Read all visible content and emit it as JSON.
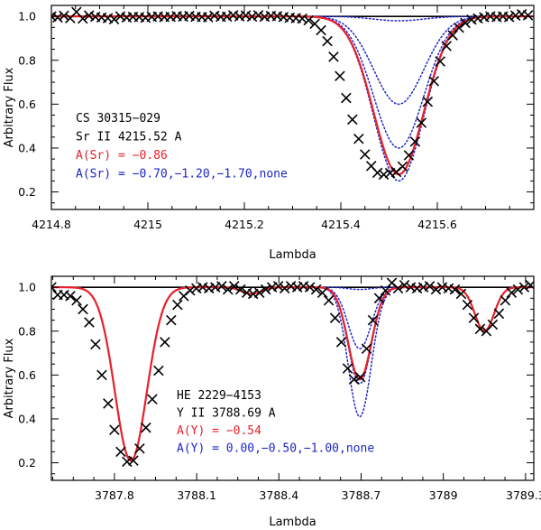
{
  "chart_data": [
    {
      "type": "line",
      "panel": "top",
      "xlabel": "Lambda",
      "ylabel": "Arbitrary Flux",
      "xlim": [
        4214.8,
        4215.8
      ],
      "ylim": [
        0.12,
        1.05
      ],
      "xticks": [
        4214.8,
        4215,
        4215.2,
        4215.4,
        4215.6
      ],
      "xtick_labels": [
        "4214.8",
        "4215",
        "4215.2",
        "4215.4",
        "4215.6"
      ],
      "yticks": [
        0.2,
        0.4,
        0.6,
        0.8,
        1.0
      ],
      "ytick_labels": [
        "0.2",
        "0.4",
        "0.6",
        "0.8",
        "1.0"
      ],
      "annotation": {
        "star": "CS 30315−029",
        "line": "Sr II 4215.52 A",
        "best_fit": "A(Sr) = −0.86",
        "range": "A(Sr) = −0.70,−1.20,−1.70,none"
      },
      "colors": {
        "best_fit": "#e8202a",
        "range": "#1d26c9",
        "observed": "#000000"
      },
      "lines": [
        {
          "center": 4215.52,
          "sigma": 0.052
        }
      ],
      "series": [
        {
          "name": "A(Sr) = −0.86 (best fit)",
          "style": "red-solid",
          "depths": [
            0.72
          ]
        },
        {
          "name": "A(Sr) = −0.70",
          "style": "blue-dotted",
          "depths": [
            0.75
          ]
        },
        {
          "name": "A(Sr) = −1.20",
          "style": "blue-dotted",
          "depths": [
            0.6
          ]
        },
        {
          "name": "A(Sr) = −1.70",
          "style": "blue-dotted",
          "depths": [
            0.4
          ]
        },
        {
          "name": "none",
          "style": "blue-dotted",
          "depths": [
            0.02
          ]
        }
      ],
      "observed": {
        "x": [
          4214.8,
          4214.813,
          4214.826,
          4214.839,
          4214.852,
          4214.865,
          4214.878,
          4214.891,
          4214.904,
          4214.917,
          4214.93,
          4214.943,
          4214.956,
          4214.969,
          4214.982,
          4214.995,
          4215.008,
          4215.021,
          4215.034,
          4215.047,
          4215.06,
          4215.073,
          4215.086,
          4215.099,
          4215.112,
          4215.125,
          4215.138,
          4215.151,
          4215.164,
          4215.177,
          4215.19,
          4215.203,
          4215.216,
          4215.229,
          4215.242,
          4215.255,
          4215.268,
          4215.281,
          4215.294,
          4215.307,
          4215.32,
          4215.333,
          4215.346,
          4215.359,
          4215.372,
          4215.385,
          4215.398,
          4215.411,
          4215.424,
          4215.437,
          4215.45,
          4215.463,
          4215.476,
          4215.489,
          4215.502,
          4215.515,
          4215.528,
          4215.541,
          4215.554,
          4215.567,
          4215.58,
          4215.593,
          4215.606,
          4215.619,
          4215.632,
          4215.645,
          4215.658,
          4215.671,
          4215.684,
          4215.697,
          4215.71,
          4215.723,
          4215.736,
          4215.749,
          4215.762,
          4215.775,
          4215.788
        ],
        "flux": [
          1.0,
          0.995,
          1.003,
          0.992,
          1.02,
          0.99,
          1.004,
          0.998,
          0.995,
          0.992,
          0.987,
          1.0,
          0.995,
          0.998,
          0.997,
          0.994,
          0.998,
          1.0,
          0.997,
          0.998,
          1.001,
          0.999,
          1.002,
          0.998,
          0.997,
          0.996,
          1.003,
          0.998,
          0.999,
          1.005,
          1.0,
          1.004,
          0.999,
          1.005,
          0.998,
          1.002,
          1.001,
          0.997,
          0.994,
          0.992,
          0.99,
          0.982,
          0.966,
          0.937,
          0.887,
          0.816,
          0.728,
          0.628,
          0.53,
          0.442,
          0.371,
          0.318,
          0.287,
          0.279,
          0.286,
          0.291,
          0.316,
          0.367,
          0.429,
          0.515,
          0.611,
          0.705,
          0.795,
          0.865,
          0.914,
          0.948,
          0.97,
          0.985,
          0.991,
          0.996,
          1.0,
          0.997,
          1.0,
          0.997,
          1.004,
          1.01,
          1.005
        ]
      }
    },
    {
      "type": "line",
      "panel": "bottom",
      "xlabel": "Lambda",
      "ylabel": "Arbitrary Flux",
      "xlim": [
        3787.57,
        3789.33
      ],
      "ylim": [
        0.12,
        1.05
      ],
      "xticks": [
        3787.8,
        3788.1,
        3788.4,
        3788.7,
        3789.0,
        3789.3
      ],
      "xtick_labels": [
        "3787.8",
        "3788.1",
        "3788.4",
        "3788.7",
        "3789",
        "3789.3"
      ],
      "yticks": [
        0.2,
        0.4,
        0.6,
        0.8,
        1.0
      ],
      "ytick_labels": [
        "0.2",
        "0.4",
        "0.6",
        "0.8",
        "1.0"
      ],
      "annotation": {
        "star": "HE 2229−4153",
        "line": "Y II 3788.69 A",
        "best_fit": "A(Y) = −0.54",
        "range": "A(Y) = 0.00,−0.50,−1.00,none"
      },
      "colors": {
        "best_fit": "#e8202a",
        "range": "#1d26c9",
        "observed": "#000000"
      },
      "lines": [
        {
          "center": 3787.86,
          "sigma": 0.058
        },
        {
          "center": 3788.3,
          "sigma": 0.035
        },
        {
          "center": 3788.695,
          "sigma": 0.042
        },
        {
          "center": 3789.15,
          "sigma": 0.035
        }
      ],
      "series": [
        {
          "name": "A(Y) = −0.54 (best fit)",
          "style": "red-solid",
          "depths": [
            0.79,
            0.03,
            0.42,
            0.2
          ]
        },
        {
          "name": "A(Y) = 0.00",
          "style": "blue-dotted",
          "depths": [
            0.79,
            0.03,
            0.59,
            0.2
          ]
        },
        {
          "name": "A(Y) = −0.50",
          "style": "blue-dotted",
          "depths": [
            0.79,
            0.03,
            0.44,
            0.2
          ]
        },
        {
          "name": "A(Y) = −1.00",
          "style": "blue-dotted",
          "depths": [
            0.79,
            0.03,
            0.28,
            0.2
          ]
        },
        {
          "name": "none",
          "style": "blue-dotted",
          "depths": [
            0.79,
            0.03,
            0.01,
            0.2
          ]
        }
      ],
      "observed": {
        "x": [
          3787.57,
          3787.593,
          3787.616,
          3787.639,
          3787.662,
          3787.685,
          3787.708,
          3787.731,
          3787.754,
          3787.777,
          3787.8,
          3787.823,
          3787.846,
          3787.869,
          3787.892,
          3787.915,
          3787.938,
          3787.961,
          3787.984,
          3788.007,
          3788.03,
          3788.053,
          3788.076,
          3788.099,
          3788.122,
          3788.145,
          3788.168,
          3788.191,
          3788.214,
          3788.237,
          3788.26,
          3788.283,
          3788.306,
          3788.329,
          3788.352,
          3788.375,
          3788.398,
          3788.421,
          3788.444,
          3788.467,
          3788.49,
          3788.513,
          3788.536,
          3788.559,
          3788.582,
          3788.605,
          3788.628,
          3788.651,
          3788.674,
          3788.697,
          3788.72,
          3788.743,
          3788.766,
          3788.789,
          3788.812,
          3788.835,
          3788.858,
          3788.881,
          3788.904,
          3788.927,
          3788.95,
          3788.973,
          3788.996,
          3789.019,
          3789.042,
          3789.065,
          3789.088,
          3789.111,
          3789.134,
          3789.157,
          3789.18,
          3789.203,
          3789.226,
          3789.249,
          3789.272,
          3789.295,
          3789.318
        ],
        "flux": [
          1.0,
          0.965,
          0.965,
          0.96,
          0.94,
          0.9,
          0.84,
          0.74,
          0.6,
          0.47,
          0.35,
          0.25,
          0.205,
          0.21,
          0.265,
          0.36,
          0.49,
          0.62,
          0.75,
          0.85,
          0.92,
          0.96,
          0.985,
          0.995,
          1.0,
          0.995,
          1.0,
          1.005,
          0.99,
          1.005,
          0.99,
          0.975,
          0.97,
          0.975,
          0.99,
          1.0,
          1.005,
          0.995,
          1.005,
          1.0,
          1.005,
          1.0,
          0.99,
          0.975,
          0.94,
          0.86,
          0.75,
          0.63,
          0.58,
          0.59,
          0.72,
          0.85,
          0.95,
          0.985,
          1.02,
          0.995,
          1.01,
          1.0,
          0.995,
          1.0,
          1.005,
          0.99,
          1.0,
          0.995,
          0.99,
          0.97,
          0.92,
          0.86,
          0.81,
          0.8,
          0.83,
          0.88,
          0.94,
          0.975,
          0.99,
          1.0,
          1.01
        ]
      }
    }
  ]
}
